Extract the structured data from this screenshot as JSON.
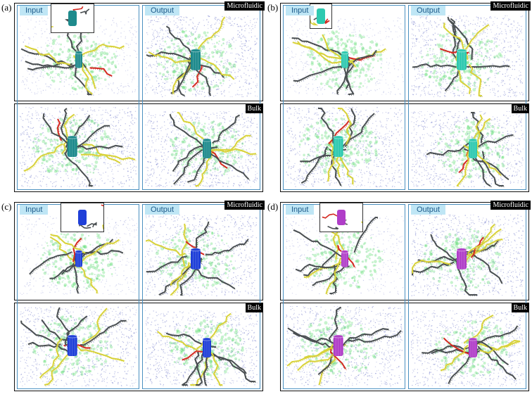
{
  "panel_letters": [
    "(a)",
    "(b)",
    "(c)",
    "(d)"
  ],
  "labels": {
    "input": "Input",
    "output": "Output",
    "microfluidic": "Microfluidic",
    "bulk": "Bulk"
  },
  "colors": {
    "frame": "#111111",
    "group_box": "#4a90c0",
    "tag_bg": "#bfe6f5",
    "water": "#8c93d4",
    "lipid_cloud": "#5fdc72",
    "chain_dark": "#4a4f52",
    "chain_yellow": "#d8d23a",
    "chain_red": "#d42a22",
    "nanotube_a": "#1e8a8c",
    "nanotube_b": "#2ec9b0",
    "nanotube_c": "#1f3fd8",
    "nanotube_d": "#b03ec8"
  },
  "quadrants": [
    {
      "tube": "nanotube_a"
    },
    {
      "tube": "nanotube_b"
    },
    {
      "tube": "nanotube_c"
    },
    {
      "tube": "nanotube_d"
    }
  ]
}
